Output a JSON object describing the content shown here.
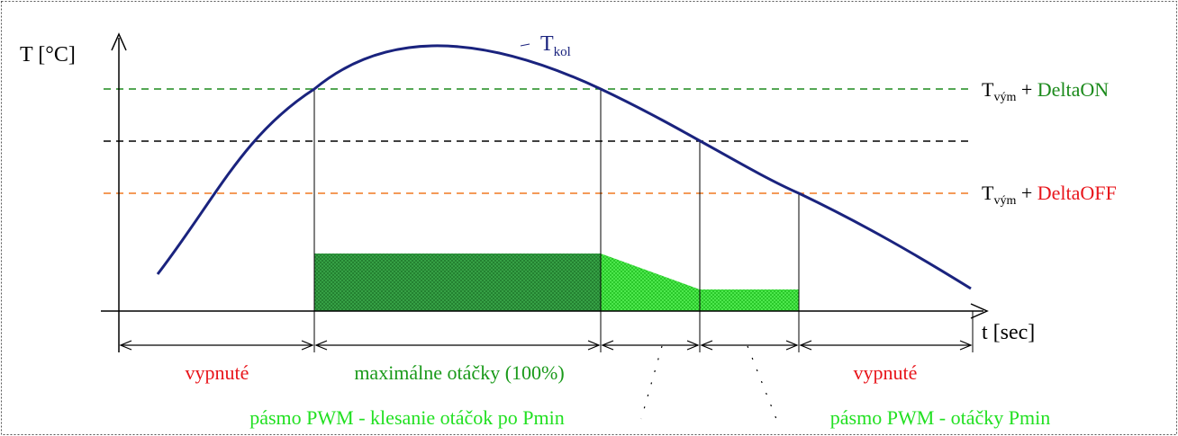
{
  "colors": {
    "curve": "#1a237e",
    "green_line": "#1b8a1b",
    "black_line": "#000000",
    "orange_line": "#f07820",
    "red_text": "#e8151b",
    "green_text": "#1a9a1a",
    "light_green_text": "#22e022",
    "dark_fill": "#2e9e3e",
    "light_fill": "#44ee44"
  },
  "axes": {
    "y_label": "T [°C]",
    "x_label": "t [sec]"
  },
  "curve_label": {
    "main": "T",
    "sub": "kol"
  },
  "thresholds": {
    "on": {
      "main": "T",
      "sub": "vým",
      "plus": " + ",
      "delta": "DeltaON"
    },
    "off": {
      "main": "T",
      "sub": "vým",
      "plus": " + ",
      "delta": "DeltaOFF"
    }
  },
  "segments": {
    "off_left": "vypnuté",
    "max_speed": "maximálne otáčky (100%)",
    "off_right": "vypnuté",
    "pwm_ramp": "pásmo PWM - klesanie otáčok po Pmin",
    "pwm_min": "pásmo PWM - otáčky Pmin"
  }
}
